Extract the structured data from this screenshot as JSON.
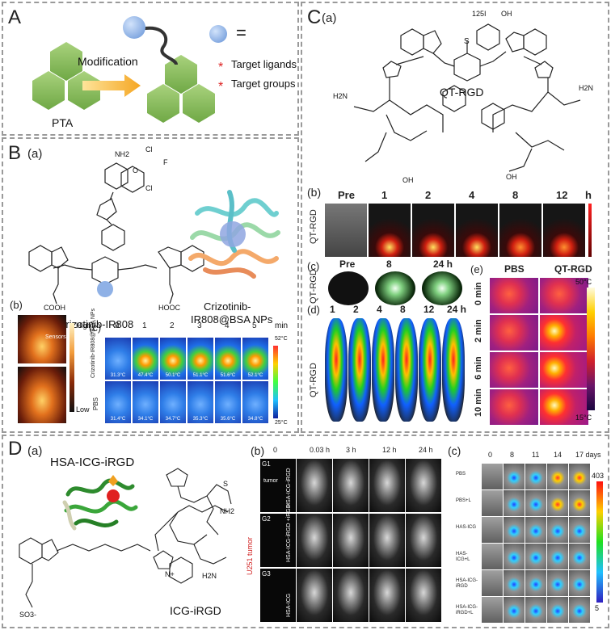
{
  "panelA": {
    "letter": "A",
    "ptaLabel": "PTA",
    "modification": "Modification",
    "equals": "=",
    "legend": [
      "Target ligands",
      "Target groups"
    ]
  },
  "panelB": {
    "letter": "B",
    "sub_a": "(a)",
    "sub_b": "(b)",
    "sub_c": "(c)",
    "molecule_label": "Crizotinib-IR808",
    "np_label_line1": "Crizotinib-",
    "np_label_line2": "IR808@BSA NPs",
    "chem_labels": [
      "NH2",
      "Cl",
      "Cl",
      "F",
      "O",
      "N",
      "N",
      "N",
      "N",
      "N",
      "N",
      "COOH",
      "HOOC"
    ],
    "heat_legend": {
      "high": "High",
      "low": "Low",
      "arrow": "Sensors"
    },
    "timepoints": [
      "0",
      "1",
      "2",
      "3",
      "4",
      "5"
    ],
    "time_unit": "min",
    "rows": [
      {
        "label": "Crizotinib-IR808@BSA NPs",
        "temps": [
          "31.3°C",
          "47.4°C",
          "50.1°C",
          "51.1°C",
          "51.6°C",
          "52.1°C"
        ]
      },
      {
        "label": "PBS",
        "temps": [
          "31.4°C",
          "34.1°C",
          "34.7°C",
          "35.3°C",
          "35.6°C",
          "34.8°C"
        ]
      }
    ],
    "scale_top": "52°C",
    "scale_bottom": "25°C"
  },
  "panelC": {
    "letter": "C",
    "sub_a": "(a)",
    "sub_b": "(b)",
    "sub_c": "(c)",
    "sub_d": "(d)",
    "sub_e": "(e)",
    "molecule_label": "QT-RGD",
    "chem_labels": [
      "S",
      "125I",
      "OH",
      "H2N",
      "NH",
      "H2N",
      "NH",
      "OH",
      "O",
      "OH"
    ],
    "b_times": [
      "Pre",
      "1",
      "2",
      "4",
      "8",
      "12"
    ],
    "b_unit": "h",
    "row_label": "QT-RGD",
    "c_times": [
      "Pre",
      "8",
      "24 h"
    ],
    "d_times": [
      "1",
      "2",
      "4",
      "8",
      "12",
      "24 h"
    ],
    "e_cols": [
      "PBS",
      "QT-RGD"
    ],
    "e_rows": [
      "0 min",
      "2 min",
      "6 min",
      "10 min"
    ],
    "e_scale_top": "50°C",
    "e_scale_bottom": "15°C"
  },
  "panelD": {
    "letter": "D",
    "sub_a": "(a)",
    "sub_b": "(b)",
    "sub_c": "(c)",
    "hsa_label": "HSA-ICG-iRGD",
    "icg_label": "ICG-iRGD",
    "chem_labels": [
      "SO3-",
      "N+",
      "N",
      "OH",
      "NH2",
      "H2N",
      "NH",
      "S",
      "S",
      "O"
    ],
    "b_times": [
      "0",
      "0.03 h",
      "3 h",
      "12 h",
      "24 h"
    ],
    "b_groups": [
      {
        "g": "G1",
        "label": "HSA-ICG-iRGD"
      },
      {
        "g": "G2",
        "label": "HSA-ICG-iRGD +iRGD"
      },
      {
        "g": "G3",
        "label": "HSA-ICG"
      }
    ],
    "b_side": "U251 tumor",
    "b_tumor": "tumor",
    "c_times": [
      "0",
      "8",
      "11",
      "14",
      "17 days"
    ],
    "c_rows": [
      "PBS",
      "PBS+L",
      "HAS-ICG",
      "HAS-ICG+L",
      "HSA-ICG-iRGD",
      "HSA-ICG-iRGD+L"
    ],
    "c_scale_top": "403",
    "c_scale_bottom": "5"
  }
}
